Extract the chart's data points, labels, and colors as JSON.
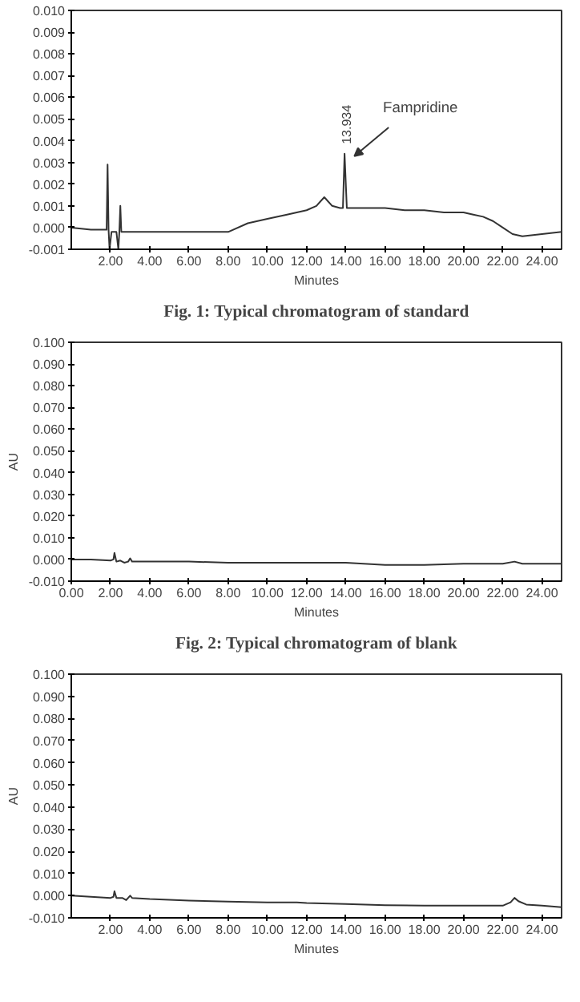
{
  "chart_data": [
    {
      "type": "line",
      "xlabel": "Minutes",
      "color": "#333333",
      "x": [
        0,
        1,
        1.5,
        1.8,
        1.85,
        1.9,
        1.95,
        2.05,
        2.1,
        2.3,
        2.4,
        2.45,
        2.5,
        2.55,
        3,
        4,
        5,
        6,
        7,
        7.5,
        8,
        9,
        10,
        11,
        12,
        12.5,
        12.9,
        13.3,
        13.7,
        13.85,
        13.934,
        14.05,
        14.2,
        15,
        16,
        17,
        18,
        19,
        20,
        20.5,
        21,
        21.5,
        22,
        22.5,
        23,
        24,
        25
      ],
      "values": [
        0.0,
        -0.0001,
        -0.0001,
        -0.0001,
        0.0029,
        -0.0001,
        -0.001,
        -0.0002,
        -0.0002,
        -0.0002,
        -0.001,
        -0.0002,
        0.001,
        -0.0002,
        -0.0002,
        -0.0002,
        -0.0002,
        -0.0002,
        -0.0002,
        -0.0002,
        -0.0002,
        0.0002,
        0.0004,
        0.0006,
        0.0008,
        0.001,
        0.0014,
        0.001,
        0.0009,
        0.0009,
        0.0034,
        0.0009,
        0.0009,
        0.0009,
        0.0009,
        0.0008,
        0.0008,
        0.0007,
        0.0007,
        0.0006,
        0.0005,
        0.0003,
        0.0,
        -0.0003,
        -0.0004,
        -0.0003,
        -0.0002
      ],
      "xlim": [
        0,
        25
      ],
      "ylim": [
        -0.001,
        0.01
      ],
      "xticks": [
        {
          "value": 2,
          "label": "2.00"
        },
        {
          "value": 4,
          "label": "4.00"
        },
        {
          "value": 6,
          "label": "6.00"
        },
        {
          "value": 8,
          "label": "8.00"
        },
        {
          "value": 10,
          "label": "10.00"
        },
        {
          "value": 12,
          "label": "12.00"
        },
        {
          "value": 14,
          "label": "14.00"
        },
        {
          "value": 16,
          "label": "16.00"
        },
        {
          "value": 18,
          "label": "18.00"
        },
        {
          "value": 20,
          "label": "20.00"
        },
        {
          "value": 22,
          "label": "22.00"
        },
        {
          "value": 24,
          "label": "24.00"
        }
      ],
      "yticks": [
        {
          "value": -0.001,
          "label": "-0.001"
        },
        {
          "value": 0,
          "label": "0.000"
        },
        {
          "value": 0.001,
          "label": "0.001"
        },
        {
          "value": 0.002,
          "label": "0.002"
        },
        {
          "value": 0.003,
          "label": "0.003"
        },
        {
          "value": 0.004,
          "label": "0.004"
        },
        {
          "value": 0.005,
          "label": "0.005"
        },
        {
          "value": 0.006,
          "label": "0.006"
        },
        {
          "value": 0.007,
          "label": "0.007"
        },
        {
          "value": 0.008,
          "label": "0.008"
        },
        {
          "value": 0.009,
          "label": "0.009"
        },
        {
          "value": 0.01,
          "label": "0.010"
        }
      ],
      "annotations": [
        {
          "text": "13.934",
          "x": 13.934,
          "y": 0.0034
        },
        {
          "text": "Fampridine",
          "x": 13.934,
          "y": 0.0034
        },
        "Fig. 1: Typical chromatogram of standard"
      ]
    },
    {
      "type": "line",
      "xlabel": "Minutes",
      "ylabel": "AU",
      "color": "#333333",
      "x": [
        0,
        1,
        2,
        2.15,
        2.2,
        2.3,
        2.5,
        2.7,
        2.9,
        3.0,
        3.1,
        4,
        6,
        8,
        10,
        12,
        14,
        16,
        18,
        20,
        22,
        22.6,
        23,
        24,
        25
      ],
      "values": [
        0.0,
        0.0,
        -0.0005,
        0.0,
        0.003,
        -0.001,
        -0.0005,
        -0.0015,
        -0.001,
        0.0005,
        -0.001,
        -0.001,
        -0.001,
        -0.0015,
        -0.0015,
        -0.0015,
        -0.0015,
        -0.0025,
        -0.0025,
        -0.002,
        -0.002,
        -0.001,
        -0.002,
        -0.002,
        -0.002
      ],
      "xlim": [
        0,
        25
      ],
      "ylim": [
        -0.01,
        0.1
      ],
      "xticks": [
        {
          "value": 0,
          "label": "0.00"
        },
        {
          "value": 2,
          "label": "2.00"
        },
        {
          "value": 4,
          "label": "4.00"
        },
        {
          "value": 6,
          "label": "6.00"
        },
        {
          "value": 8,
          "label": "8.00"
        },
        {
          "value": 10,
          "label": "10.00"
        },
        {
          "value": 12,
          "label": "12.00"
        },
        {
          "value": 14,
          "label": "14.00"
        },
        {
          "value": 16,
          "label": "16.00"
        },
        {
          "value": 18,
          "label": "18.00"
        },
        {
          "value": 20,
          "label": "20.00"
        },
        {
          "value": 22,
          "label": "22.00"
        },
        {
          "value": 24,
          "label": "24.00"
        }
      ],
      "yticks": [
        {
          "value": -0.01,
          "label": "-0.010"
        },
        {
          "value": 0,
          "label": "0.000"
        },
        {
          "value": 0.01,
          "label": "0.010"
        },
        {
          "value": 0.02,
          "label": "0.020"
        },
        {
          "value": 0.03,
          "label": "0.030"
        },
        {
          "value": 0.04,
          "label": "0.040"
        },
        {
          "value": 0.05,
          "label": "0.050"
        },
        {
          "value": 0.06,
          "label": "0.060"
        },
        {
          "value": 0.07,
          "label": "0.070"
        },
        {
          "value": 0.08,
          "label": "0.080"
        },
        {
          "value": 0.09,
          "label": "0.090"
        },
        {
          "value": 0.1,
          "label": "0.100"
        }
      ],
      "annotations": [
        "Fig. 2: Typical chromatogram of blank"
      ]
    },
    {
      "type": "line",
      "xlabel": "Minutes",
      "ylabel": "AU",
      "color": "#333333",
      "x": [
        0,
        1,
        2,
        2.15,
        2.2,
        2.3,
        2.6,
        2.8,
        3.0,
        3.1,
        4,
        6,
        8,
        10,
        11.5,
        12,
        14,
        16,
        18,
        20,
        22,
        22.4,
        22.6,
        22.8,
        23.2,
        24,
        25
      ],
      "values": [
        0.0,
        -0.0005,
        -0.001,
        -0.0005,
        0.002,
        -0.001,
        -0.001,
        -0.002,
        0.0,
        -0.001,
        -0.0015,
        -0.0022,
        -0.0027,
        -0.003,
        -0.003,
        -0.0033,
        -0.0038,
        -0.0043,
        -0.0045,
        -0.0045,
        -0.0045,
        -0.003,
        -0.001,
        -0.0025,
        -0.004,
        -0.0045,
        -0.0052
      ],
      "xlim": [
        0,
        25
      ],
      "ylim": [
        -0.01,
        0.1
      ],
      "xticks": [
        {
          "value": 2,
          "label": "2.00"
        },
        {
          "value": 4,
          "label": "4.00"
        },
        {
          "value": 6,
          "label": "6.00"
        },
        {
          "value": 8,
          "label": "8.00"
        },
        {
          "value": 10,
          "label": "10.00"
        },
        {
          "value": 12,
          "label": "12.00"
        },
        {
          "value": 14,
          "label": "14.00"
        },
        {
          "value": 16,
          "label": "16.00"
        },
        {
          "value": 18,
          "label": "18.00"
        },
        {
          "value": 20,
          "label": "20.00"
        },
        {
          "value": 22,
          "label": "22.00"
        },
        {
          "value": 24,
          "label": "24.00"
        }
      ],
      "yticks": [
        {
          "value": -0.01,
          "label": "-0.010"
        },
        {
          "value": 0,
          "label": "0.000"
        },
        {
          "value": 0.01,
          "label": "0.010"
        },
        {
          "value": 0.02,
          "label": "0.020"
        },
        {
          "value": 0.03,
          "label": "0.030"
        },
        {
          "value": 0.04,
          "label": "0.040"
        },
        {
          "value": 0.05,
          "label": "0.050"
        },
        {
          "value": 0.06,
          "label": "0.060"
        },
        {
          "value": 0.07,
          "label": "0.070"
        },
        {
          "value": 0.08,
          "label": "0.080"
        },
        {
          "value": 0.09,
          "label": "0.090"
        },
        {
          "value": 0.1,
          "label": "0.100"
        }
      ]
    }
  ]
}
